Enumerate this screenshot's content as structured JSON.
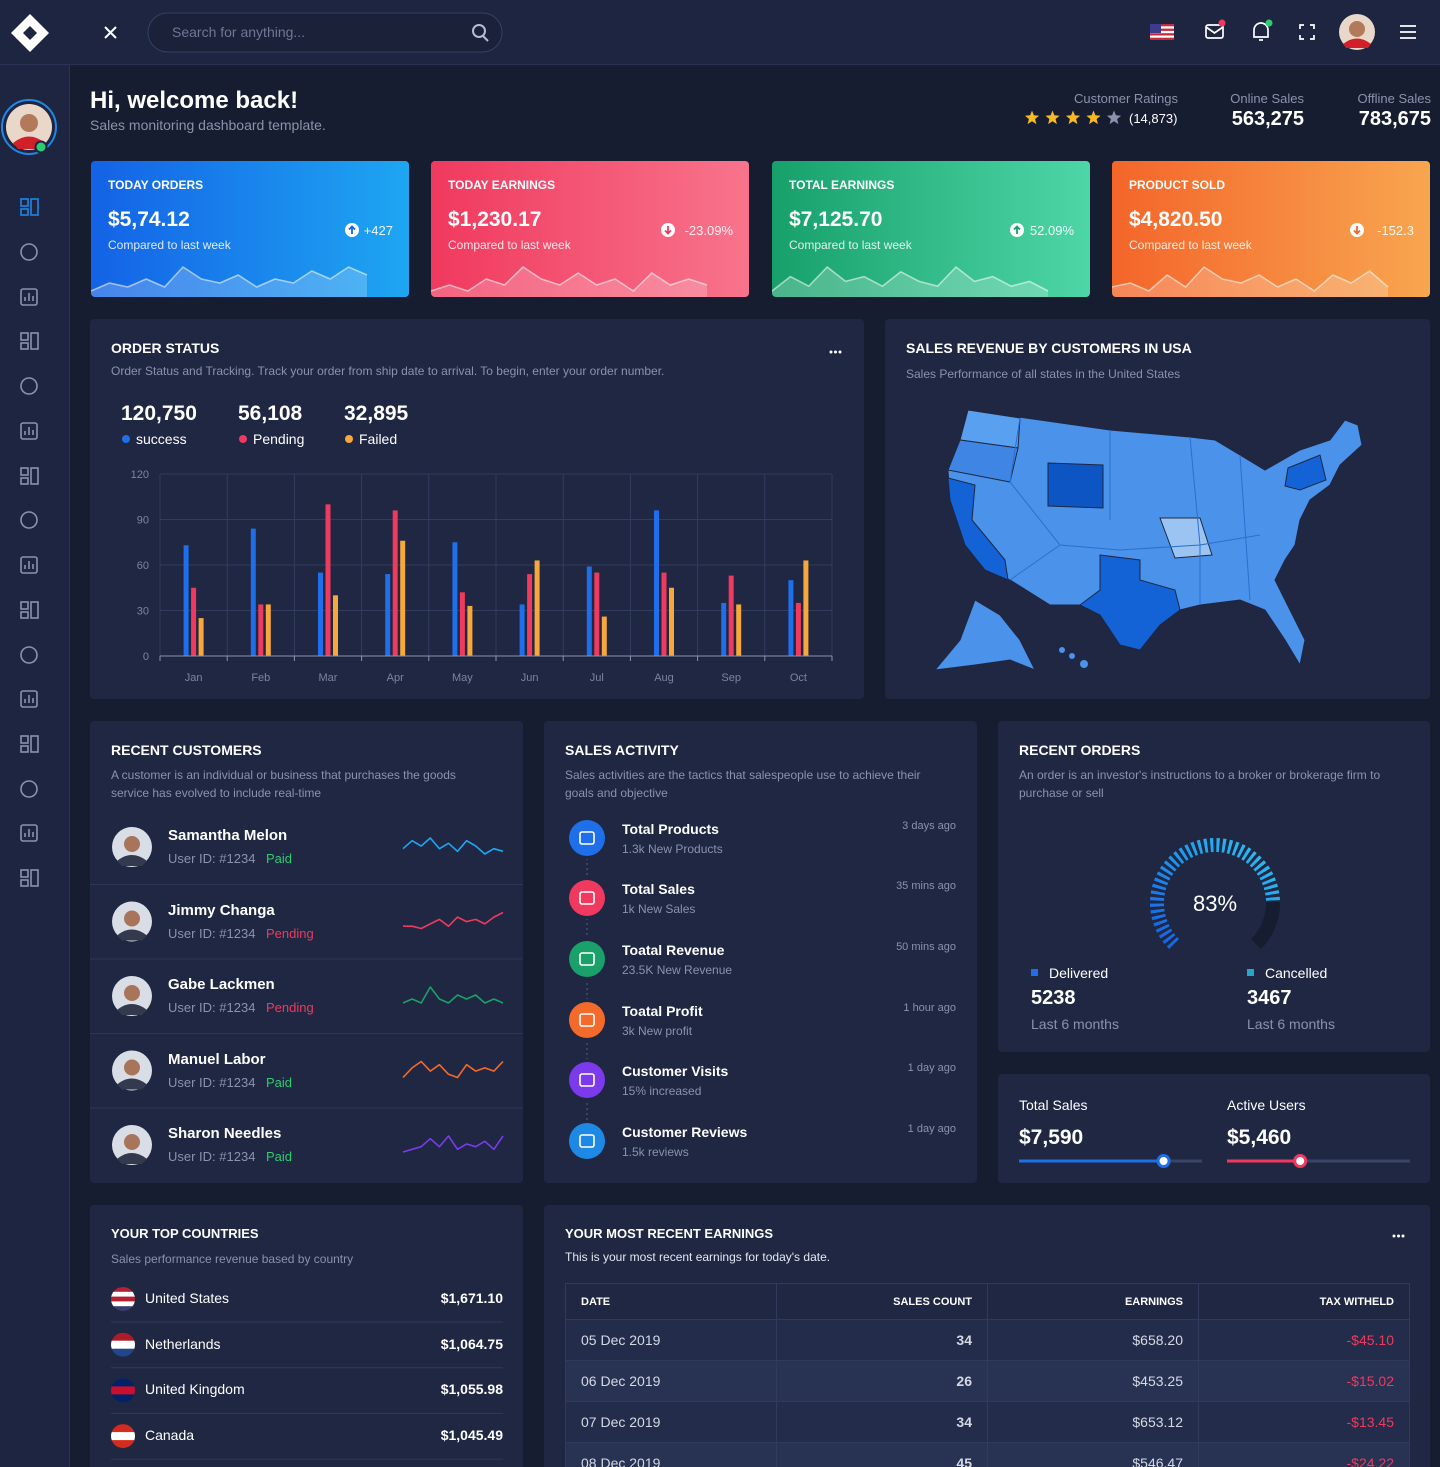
{
  "header": {
    "search_placeholder": "Search for anything..."
  },
  "welcome": {
    "title": "Hi, welcome back!",
    "subtitle": "Sales monitoring dashboard template."
  },
  "summary": {
    "ratings": {
      "label": "Customer Ratings",
      "rating": 4,
      "stars": 5,
      "count": "(14,873)"
    },
    "online": {
      "label": "Online Sales",
      "value": "563,275"
    },
    "offline": {
      "label": "Offline Sales",
      "value": "783,675"
    }
  },
  "kpis": [
    {
      "label": "TODAY ORDERS",
      "value": "$5,74.12",
      "note": "Compared to last week",
      "change": "+427",
      "direction": "up",
      "gradient": [
        "#1462e6",
        "#1ea6f2"
      ],
      "spark": [
        2,
        4,
        3,
        5,
        3,
        8,
        5,
        4,
        6,
        3,
        5,
        4,
        7,
        5,
        8,
        6
      ]
    },
    {
      "label": "TODAY EARNINGS",
      "value": "$1,230.17",
      "note": "Compared to last week",
      "change": "-23.09%",
      "direction": "down",
      "gradient": [
        "#f0395e",
        "#f8748c"
      ],
      "spark": [
        2,
        3,
        2,
        4,
        3,
        6,
        4,
        3,
        5,
        3,
        4,
        2,
        5,
        3,
        4,
        3
      ]
    },
    {
      "label": "TOTAL EARNINGS",
      "value": "$7,125.70",
      "note": "Compared to last week",
      "change": "52.09%",
      "direction": "up",
      "gradient": [
        "#17a06a",
        "#4fd6a8"
      ],
      "spark": [
        2,
        5,
        3,
        7,
        4,
        5,
        3,
        6,
        4,
        3,
        7,
        4,
        5,
        3,
        4,
        2
      ]
    },
    {
      "label": "PRODUCT SOLD",
      "value": "$4,820.50",
      "note": "Compared to last week",
      "change": "-152.3",
      "direction": "down",
      "gradient": [
        "#f4652a",
        "#f8a650"
      ],
      "spark": [
        3,
        4,
        2,
        6,
        3,
        8,
        5,
        4,
        6,
        3,
        5,
        2,
        6,
        4,
        7,
        3
      ]
    }
  ],
  "order_status": {
    "title": "ORDER STATUS",
    "subtitle": "Order Status and Tracking. Track your order from ship date to arrival. To begin, enter your order number.",
    "totals": [
      "120,750",
      "56,108",
      "32,895"
    ]
  },
  "chart_data": {
    "type": "bar",
    "categories": [
      "Jan",
      "Feb",
      "Mar",
      "Apr",
      "May",
      "Jun",
      "Jul",
      "Aug",
      "Sep",
      "Oct"
    ],
    "series": [
      {
        "name": "success",
        "color": "#1f6fe8",
        "values": [
          73,
          84,
          55,
          54,
          75,
          34,
          59,
          96,
          35,
          50
        ]
      },
      {
        "name": "Pending",
        "color": "#f0395e",
        "values": [
          45,
          34,
          100,
          96,
          42,
          54,
          55,
          55,
          53,
          35
        ]
      },
      {
        "name": "Failed",
        "color": "#f7a83a",
        "values": [
          25,
          34,
          40,
          76,
          33,
          63,
          26,
          45,
          34,
          63
        ]
      }
    ],
    "ylim": [
      0,
      120
    ],
    "yticks": [
      0,
      30,
      60,
      90,
      120
    ],
    "grid": true
  },
  "map": {
    "title": "SALES REVENUE BY CUSTOMERS IN USA",
    "subtitle": "Sales Performance of all states in the United States"
  },
  "recent_customers": {
    "title": "RECENT CUSTOMERS",
    "subtitle": "A customer is an individual or business that purchases the goods service has evolved to include real-time",
    "items": [
      {
        "name": "Samantha Melon",
        "user_id": "User ID: #1234",
        "status": "Paid",
        "status_color": "#2ecc71",
        "spark_color": "#1ea5f2",
        "spark": [
          5,
          8,
          6,
          9,
          5,
          7,
          4,
          8,
          6,
          3,
          5,
          4
        ]
      },
      {
        "name": "Jimmy Changa",
        "user_id": "User ID: #1234",
        "status": "Pending",
        "status_color": "#f0395e",
        "spark_color": "#f0395e",
        "spark": [
          3,
          3,
          2,
          4,
          6,
          3,
          7,
          5,
          6,
          4,
          7,
          9
        ]
      },
      {
        "name": "Gabe Lackmen",
        "user_id": "User ID: #1234",
        "status": "Pending",
        "status_color": "#f0395e",
        "spark_color": "#1aa06a",
        "spark": [
          4,
          5,
          4,
          8,
          5,
          4,
          6,
          5,
          6,
          4,
          5,
          4
        ]
      },
      {
        "name": "Manuel Labor",
        "user_id": "User ID: #1234",
        "status": "Paid",
        "status_color": "#2ecc71",
        "spark_color": "#f46a2a",
        "spark": [
          2,
          5,
          7,
          4,
          6,
          3,
          2,
          6,
          4,
          5,
          4,
          7
        ]
      },
      {
        "name": "Sharon Needles",
        "user_id": "User ID: #1234",
        "status": "Paid",
        "status_color": "#2ecc71",
        "spark_color": "#7c3aed",
        "spark": [
          2,
          3,
          4,
          7,
          4,
          8,
          3,
          5,
          4,
          6,
          3,
          8
        ]
      }
    ]
  },
  "sales_activity": {
    "title": "SALES ACTIVITY",
    "subtitle": "Sales activities are the tactics that salespeople use to achieve their goals and objective",
    "items": [
      {
        "title": "Total Products",
        "subtitle": "1.3k New Products",
        "time": "3 days ago",
        "color": "#1f6fe8"
      },
      {
        "title": "Total Sales",
        "subtitle": "1k New Sales",
        "time": "35 mins ago",
        "color": "#f0395e"
      },
      {
        "title": "Toatal Revenue",
        "subtitle": "23.5K New Revenue",
        "time": "50 mins ago",
        "color": "#1aa06a"
      },
      {
        "title": "Toatal Profit",
        "subtitle": "3k New profit",
        "time": "1 hour ago",
        "color": "#f46a2a"
      },
      {
        "title": "Customer Visits",
        "subtitle": "15% increased",
        "time": "1 day ago",
        "color": "#7c3aed"
      },
      {
        "title": "Customer Reviews",
        "subtitle": "1.5k reviews",
        "time": "1 day ago",
        "color": "#1e88e5"
      }
    ]
  },
  "recent_orders": {
    "title": "RECENT ORDERS",
    "subtitle": "An order is an investor's instructions to a broker or brokerage firm to purchase or sell",
    "gauge": {
      "value": 83,
      "label": "83%",
      "range": [
        0,
        100
      ]
    },
    "stats": [
      {
        "label": "Delivered",
        "value": "5238",
        "period": "Last 6 months",
        "color": "#1f6fe8"
      },
      {
        "label": "Cancelled",
        "value": "3467",
        "period": "Last 6 months",
        "color": "#26a6c9"
      }
    ]
  },
  "mini_stats": {
    "range": [
      0,
      100
    ],
    "items": [
      {
        "label": "Total Sales",
        "value": "$7,590",
        "progress": 79,
        "color": "#1f6fe8"
      },
      {
        "label": "Active Users",
        "value": "$5,460",
        "progress": 40,
        "color": "#f0395e"
      }
    ]
  },
  "top_countries": {
    "title": "YOUR TOP COUNTRIES",
    "subtitle": "Sales performance revenue based by country",
    "rows": [
      {
        "name": "United States",
        "amount": "$1,671.10",
        "flag": [
          "#b22234",
          "#ffffff",
          "#b22234",
          "#ffffff",
          "#3c3b6e"
        ]
      },
      {
        "name": "Netherlands",
        "amount": "$1,064.75",
        "flag": [
          "#ae1c28",
          "#ffffff",
          "#21468b"
        ]
      },
      {
        "name": "United Kingdom",
        "amount": "$1,055.98",
        "flag": [
          "#012169",
          "#c8102e",
          "#012169"
        ]
      },
      {
        "name": "Canada",
        "amount": "$1,045.49",
        "flag": [
          "#d52b1e",
          "#ffffff",
          "#d52b1e"
        ]
      }
    ]
  },
  "earnings": {
    "title": "YOUR MOST RECENT EARNINGS",
    "subtitle": "This is your most recent earnings for today's date.",
    "columns": [
      "DATE",
      "SALES COUNT",
      "EARNINGS",
      "TAX WITHELD"
    ],
    "rows": [
      [
        "05 Dec 2019",
        "34",
        "$658.20",
        "-$45.10"
      ],
      [
        "06 Dec 2019",
        "26",
        "$453.25",
        "-$15.02"
      ],
      [
        "07 Dec 2019",
        "34",
        "$653.12",
        "-$13.45"
      ],
      [
        "08 Dec 2019",
        "45",
        "$546.47",
        "-$24.22"
      ]
    ]
  }
}
